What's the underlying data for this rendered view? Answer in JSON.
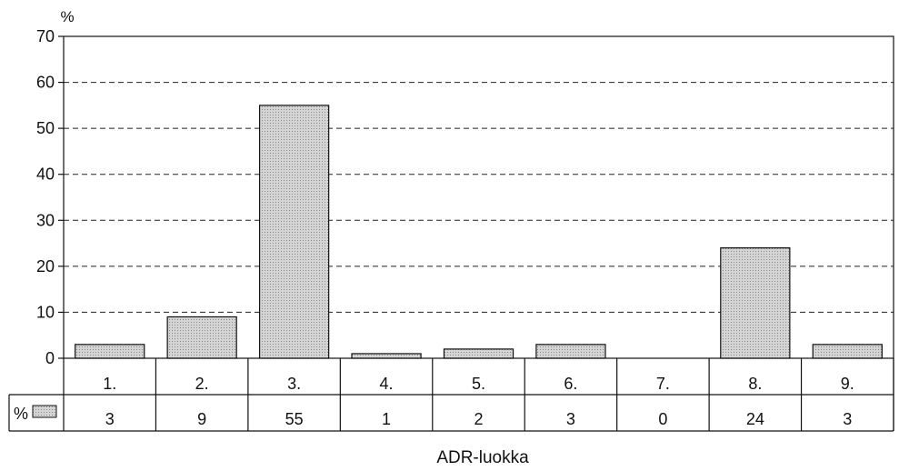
{
  "chart_data": {
    "type": "bar",
    "title": "",
    "xlabel": "ADR-luokka",
    "ylabel": "%",
    "ylim": [
      0,
      70
    ],
    "yticks": [
      0,
      10,
      20,
      30,
      40,
      50,
      60,
      70
    ],
    "grid": "horizontal dashed",
    "categories": [
      "1.",
      "2.",
      "3.",
      "4.",
      "5.",
      "6.",
      "7.",
      "8.",
      "9."
    ],
    "series": [
      {
        "name": "%",
        "values": [
          3,
          9,
          55,
          1,
          2,
          3,
          0,
          24,
          3
        ]
      }
    ],
    "table_values": [
      "3",
      "9",
      "55",
      "1",
      "2",
      "3",
      "0",
      "24",
      "3"
    ],
    "bar_color": "#c9c9c9",
    "bar_pattern": "dotted"
  }
}
